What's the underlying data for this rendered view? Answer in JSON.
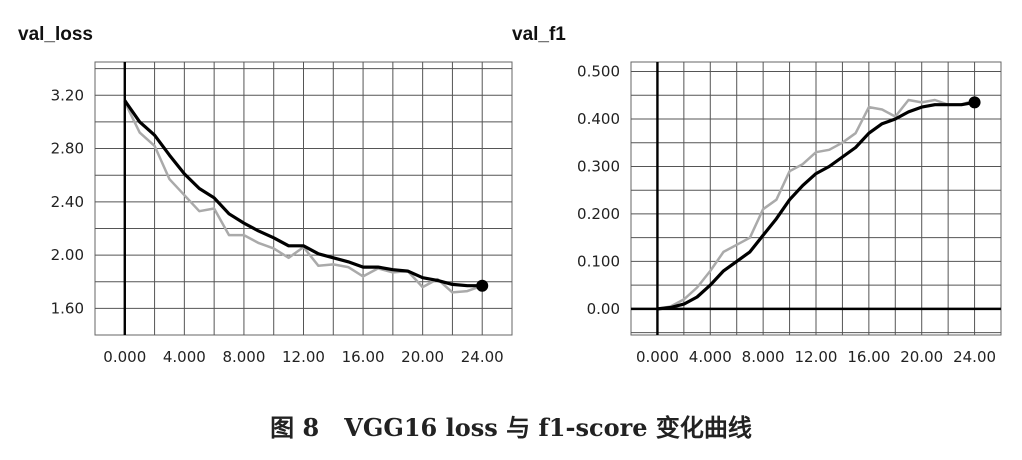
{
  "figure_caption": "图 8   VGG16 loss 与 f1-score 变化曲线",
  "colors": {
    "smoothed": "#000000",
    "raw": "#aaaaaa",
    "grid": "#555555",
    "frame": "#666666",
    "axis": "#000000"
  },
  "chart_data": [
    {
      "type": "line",
      "title": "val_loss",
      "xlabel": "",
      "ylabel": "",
      "xlim": [
        -2,
        26
      ],
      "ylim": [
        1.4,
        3.45
      ],
      "grid": true,
      "x_ticks": [
        0,
        4,
        8,
        12,
        16,
        20,
        24
      ],
      "x_tick_labels": [
        "0.000",
        "4.000",
        "8.000",
        "12.00",
        "16.00",
        "20.00",
        "24.00"
      ],
      "y_ticks": [
        1.6,
        2.0,
        2.4,
        2.8,
        3.2
      ],
      "y_tick_labels": [
        "1.60",
        "2.00",
        "2.40",
        "2.80",
        "3.20"
      ],
      "series": [
        {
          "style": "raw",
          "x": [
            0,
            1,
            2,
            3,
            4,
            5,
            6,
            7,
            8,
            9,
            10,
            11,
            12,
            13,
            14,
            15,
            16,
            17,
            18,
            19,
            20,
            21,
            22,
            23,
            24
          ],
          "y": [
            3.15,
            2.92,
            2.82,
            2.57,
            2.45,
            2.33,
            2.35,
            2.15,
            2.15,
            2.09,
            2.05,
            1.98,
            2.06,
            1.92,
            1.93,
            1.91,
            1.84,
            1.9,
            1.87,
            1.88,
            1.76,
            1.82,
            1.72,
            1.73,
            1.77
          ]
        },
        {
          "style": "smoothed",
          "x": [
            0,
            1,
            2,
            3,
            4,
            5,
            6,
            7,
            8,
            9,
            10,
            11,
            12,
            13,
            14,
            15,
            16,
            17,
            18,
            19,
            20,
            21,
            22,
            23,
            24
          ],
          "y": [
            3.16,
            3.0,
            2.9,
            2.75,
            2.61,
            2.5,
            2.43,
            2.31,
            2.24,
            2.18,
            2.13,
            2.07,
            2.07,
            2.01,
            1.98,
            1.95,
            1.91,
            1.91,
            1.89,
            1.88,
            1.83,
            1.81,
            1.78,
            1.77,
            1.77
          ],
          "end_marker": true
        }
      ]
    },
    {
      "type": "line",
      "title": "val_f1",
      "xlabel": "",
      "ylabel": "",
      "xlim": [
        -2,
        26
      ],
      "ylim": [
        -0.055,
        0.52
      ],
      "grid": true,
      "x_ticks": [
        0,
        4,
        8,
        12,
        16,
        20,
        24
      ],
      "x_tick_labels": [
        "0.000",
        "4.000",
        "8.000",
        "12.00",
        "16.00",
        "20.00",
        "24.00"
      ],
      "y_ticks": [
        0,
        0.1,
        0.2,
        0.3,
        0.4,
        0.5
      ],
      "y_tick_labels": [
        "0.00",
        "0.100",
        "0.200",
        "0.300",
        "0.400",
        "0.500"
      ],
      "series": [
        {
          "style": "raw",
          "x": [
            0,
            1,
            2,
            3,
            4,
            5,
            6,
            7,
            8,
            9,
            10,
            11,
            12,
            13,
            14,
            15,
            16,
            17,
            18,
            19,
            20,
            21,
            22,
            23,
            24
          ],
          "y": [
            0.0,
            0.005,
            0.02,
            0.045,
            0.08,
            0.12,
            0.135,
            0.15,
            0.21,
            0.23,
            0.29,
            0.305,
            0.33,
            0.335,
            0.35,
            0.37,
            0.425,
            0.42,
            0.405,
            0.44,
            0.435,
            0.44,
            0.43,
            0.43,
            0.44
          ]
        },
        {
          "style": "smoothed",
          "x": [
            0,
            1,
            2,
            3,
            4,
            5,
            6,
            7,
            8,
            9,
            10,
            11,
            12,
            13,
            14,
            15,
            16,
            17,
            18,
            19,
            20,
            21,
            22,
            23,
            24
          ],
          "y": [
            0.0,
            0.003,
            0.01,
            0.025,
            0.05,
            0.08,
            0.1,
            0.12,
            0.155,
            0.19,
            0.23,
            0.26,
            0.285,
            0.3,
            0.32,
            0.34,
            0.37,
            0.39,
            0.4,
            0.415,
            0.425,
            0.43,
            0.43,
            0.43,
            0.435
          ],
          "end_marker": true
        }
      ]
    }
  ]
}
